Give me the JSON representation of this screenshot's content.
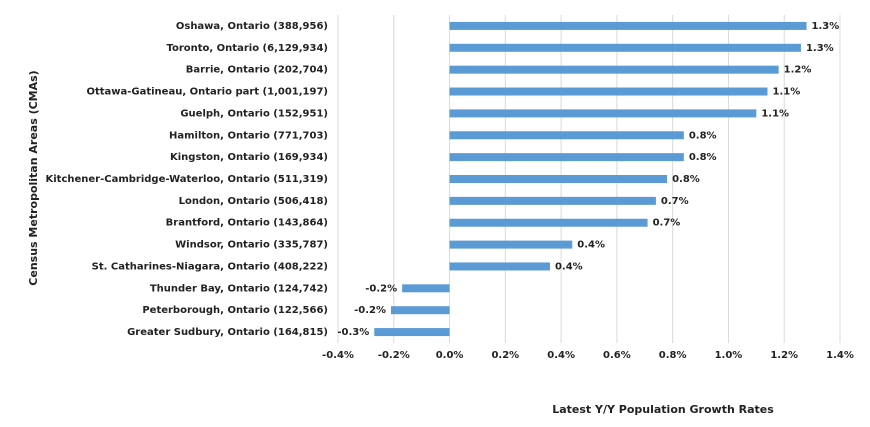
{
  "chart_data": {
    "type": "barh",
    "x_label": "Latest Y/Y Population Growth Rates",
    "y_label": "Census Metropolitan Areas (CMAs)",
    "categories": [
      "Oshawa, Ontario (388,956)",
      "Toronto, Ontario (6,129,934)",
      "Barrie, Ontario (202,704)",
      "Ottawa-Gatineau, Ontario part (1,001,197)",
      "Guelph, Ontario (152,951)",
      "Hamilton, Ontario (771,703)",
      "Kingston, Ontario (169,934)",
      "Kitchener-Cambridge-Waterloo, Ontario (511,319)",
      "London, Ontario (506,418)",
      "Brantford, Ontario (143,864)",
      "Windsor, Ontario (335,787)",
      "St. Catharines-Niagara, Ontario (408,222)",
      "Thunder Bay, Ontario (124,742)",
      "Peterborough, Ontario (122,566)",
      "Greater Sudbury, Ontario (164,815)"
    ],
    "values": [
      1.28,
      1.26,
      1.18,
      1.14,
      1.1,
      0.84,
      0.84,
      0.78,
      0.74,
      0.71,
      0.44,
      0.36,
      -0.17,
      -0.21,
      -0.27
    ],
    "value_labels": [
      "1.3%",
      "1.3%",
      "1.2%",
      "1.1%",
      "1.1%",
      "0.8%",
      "0.8%",
      "0.8%",
      "0.7%",
      "0.7%",
      "0.4%",
      "0.4%",
      "-0.2%",
      "-0.2%",
      "-0.3%"
    ],
    "color": "#5b9bd5",
    "xlim": [
      -0.4,
      1.4
    ],
    "xticks": [
      {
        "value": -0.4,
        "label": "-0.4%"
      },
      {
        "value": -0.2,
        "label": "-0.2%"
      },
      {
        "value": 0,
        "label": "0.0%"
      },
      {
        "value": 0.2,
        "label": "0.2%"
      },
      {
        "value": 0.4,
        "label": "0.4%"
      },
      {
        "value": 0.6,
        "label": "0.6%"
      },
      {
        "value": 0.8,
        "label": "0.8%"
      },
      {
        "value": 1.0,
        "label": "1.0%"
      },
      {
        "value": 1.2,
        "label": "1.2%"
      },
      {
        "value": 1.4,
        "label": "1.4%"
      }
    ],
    "grid": true
  }
}
